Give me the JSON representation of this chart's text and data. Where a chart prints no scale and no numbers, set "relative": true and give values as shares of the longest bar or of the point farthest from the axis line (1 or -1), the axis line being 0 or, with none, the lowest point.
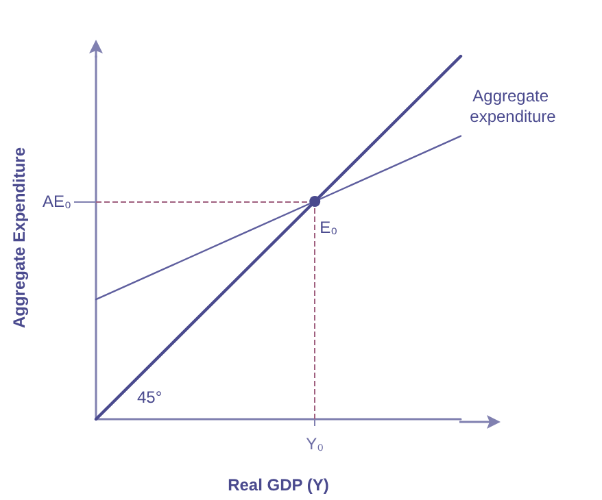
{
  "chart_data": {
    "type": "line",
    "relative": true,
    "xlabel": "Real GDP (Y)",
    "ylabel": "Aggregate Expenditure",
    "categories": [
      null,
      null,
      null,
      null,
      null,
      null
    ],
    "series": [
      {
        "color": "#4a4a8e",
        "values": [
          0,
          0.2,
          0.4,
          0.6,
          0.8,
          1
        ]
      },
      {
        "name": "Aggregate expenditure",
        "color": "#5e5e9e",
        "values": [
          0.33,
          0.42,
          0.51,
          0.6,
          0.69,
          0.78
        ]
      }
    ],
    "ref_lines": [
      {
        "axis": "y",
        "value": 0.6,
        "label": "AE₀",
        "color": "#a0607f",
        "line_style": "dashed"
      }
    ],
    "annotations": [
      "45°",
      {
        "text": "E₀",
        "y": 0.6
      },
      "Y₀"
    ],
    "grid": false,
    "legend": false,
    "marker": "none",
    "line_style": "solid"
  }
}
